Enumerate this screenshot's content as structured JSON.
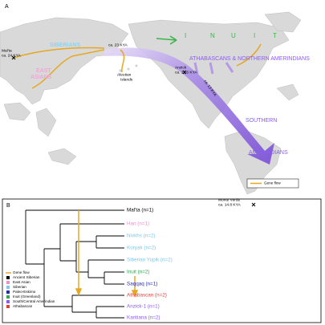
{
  "panel_a": {
    "label": "A",
    "siberians": "SIBERIANS",
    "east_asians": [
      "EAST",
      "ASIANS"
    ],
    "malta": [
      "Mal'ta",
      "ca. 24 KYA"
    ],
    "beringia_date": "ca. 23 KYA",
    "aleutian": [
      "Aleutian",
      "Islands"
    ],
    "inuit_letters": [
      "I",
      "N",
      "U",
      "I",
      "T"
    ],
    "athabascans": "ATHABASCANS & NORTHERN AMERINDIANS",
    "anzick": [
      "Anzick",
      "ca. 12.6 KYA"
    ],
    "split_date": "ca. 13 KYA",
    "southern": [
      "SOUTHERN",
      "AMERINDIANS"
    ],
    "monte_verde": [
      "Monte Verde",
      "ca. 14.8 KYA"
    ],
    "legend": "Gene flow"
  },
  "panel_b": {
    "label": "B",
    "leaves": [
      "Mal'ta (n=1)",
      "Han (n=1)",
      "Nivkhs (n=2)",
      "Koryak (n=2)",
      "Siberian Yupik (n=2)",
      "Inuit (n=2)",
      "Saqqaq (n=1)",
      "Athabascan (n=2)",
      "Anzick-1 (n=1)",
      "Karitiana (n=2)"
    ],
    "legend": [
      "Gene flow",
      "Ancient Siberian",
      "East Asian",
      "Siberian",
      "Paleo-Eskimo",
      "Inuit (Greenland)",
      "South/Central Amerindian",
      "Athabascan"
    ]
  }
}
